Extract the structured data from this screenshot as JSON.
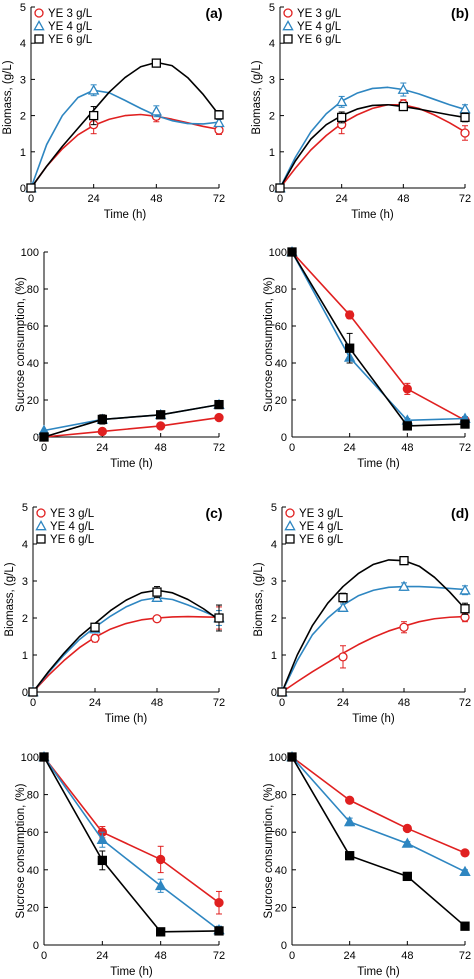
{
  "chart_data": [
    {
      "id": "biomass-a",
      "type": "line",
      "panel_label": "(a)",
      "xlabel": "Time (h)",
      "ylabel": "Biomass, (g/L)",
      "xlim": [
        0,
        72
      ],
      "ylim": [
        0,
        5
      ],
      "xticks": [
        0,
        24,
        48,
        72
      ],
      "yticks": [
        0,
        1,
        2,
        3,
        4,
        5
      ],
      "legend": "top-left",
      "grid": false,
      "series": [
        {
          "name": "YE 3 g/L",
          "color": "#e02020",
          "marker": "circle-open",
          "x": [
            0,
            24,
            48,
            72
          ],
          "y": [
            0,
            1.75,
            1.98,
            1.6
          ],
          "err": [
            0,
            0.25,
            0.15,
            0.12
          ],
          "curve_x": [
            0,
            6,
            12,
            18,
            24,
            30,
            36,
            42,
            48,
            54,
            60,
            66,
            72
          ],
          "curve_y": [
            0,
            0.6,
            1.08,
            1.47,
            1.73,
            1.9,
            2.0,
            2.03,
            1.98,
            1.9,
            1.8,
            1.7,
            1.62
          ]
        },
        {
          "name": "YE 4 g/L",
          "color": "#2e86c1",
          "marker": "triangle-open",
          "x": [
            0,
            24,
            48,
            72
          ],
          "y": [
            0,
            2.7,
            2.12,
            1.8
          ],
          "err": [
            0,
            0.15,
            0.15,
            0.1
          ],
          "curve_x": [
            0,
            6,
            12,
            18,
            24,
            30,
            36,
            42,
            48,
            54,
            60,
            66,
            72
          ],
          "curve_y": [
            0,
            1.2,
            2.0,
            2.5,
            2.7,
            2.63,
            2.42,
            2.2,
            2.0,
            1.86,
            1.78,
            1.77,
            1.82
          ]
        },
        {
          "name": "YE 6 g/L",
          "color": "#000000",
          "marker": "square-open",
          "x": [
            0,
            24,
            48,
            72
          ],
          "y": [
            0,
            2.0,
            3.45,
            2.02
          ],
          "err": [
            0,
            0.25,
            0.08,
            0.12
          ],
          "curve_x": [
            0,
            6,
            12,
            18,
            24,
            30,
            36,
            42,
            48,
            54,
            60,
            66,
            72
          ],
          "curve_y": [
            0,
            0.6,
            1.15,
            1.65,
            2.15,
            2.65,
            3.05,
            3.35,
            3.47,
            3.38,
            3.05,
            2.58,
            2.02
          ]
        }
      ]
    },
    {
      "id": "biomass-b",
      "type": "line",
      "panel_label": "(b)",
      "xlabel": "Time (h)",
      "ylabel": "Biomass, (g/L)",
      "xlim": [
        0,
        72
      ],
      "ylim": [
        0,
        5
      ],
      "xticks": [
        0,
        24,
        48,
        72
      ],
      "yticks": [
        0,
        1,
        2,
        3,
        4,
        5
      ],
      "legend": "top-left",
      "grid": false,
      "series": [
        {
          "name": "YE 3 g/L",
          "color": "#e02020",
          "marker": "circle-open",
          "x": [
            0,
            24,
            48,
            72
          ],
          "y": [
            0,
            1.75,
            2.32,
            1.52
          ],
          "err": [
            0,
            0.25,
            0.12,
            0.2
          ],
          "curve_x": [
            0,
            6,
            12,
            18,
            24,
            30,
            36,
            42,
            48,
            54,
            60,
            66,
            72
          ],
          "curve_y": [
            0,
            0.55,
            1.05,
            1.45,
            1.78,
            2.02,
            2.2,
            2.3,
            2.3,
            2.2,
            2.02,
            1.8,
            1.55
          ]
        },
        {
          "name": "YE 4 g/L",
          "color": "#2e86c1",
          "marker": "triangle-open",
          "x": [
            0,
            24,
            48,
            72
          ],
          "y": [
            0,
            2.38,
            2.72,
            2.18
          ],
          "err": [
            0,
            0.15,
            0.18,
            0.12
          ],
          "curve_x": [
            0,
            6,
            12,
            18,
            24,
            30,
            36,
            42,
            48,
            54,
            60,
            66,
            72
          ],
          "curve_y": [
            0,
            0.85,
            1.55,
            2.05,
            2.4,
            2.62,
            2.75,
            2.78,
            2.72,
            2.6,
            2.45,
            2.3,
            2.17
          ]
        },
        {
          "name": "YE 6 g/L",
          "color": "#000000",
          "marker": "square-open",
          "x": [
            0,
            24,
            48,
            72
          ],
          "y": [
            0,
            1.95,
            2.25,
            1.95
          ],
          "err": [
            0,
            0.15,
            0.1,
            0.12
          ],
          "curve_x": [
            0,
            6,
            12,
            18,
            24,
            30,
            36,
            42,
            48,
            54,
            60,
            66,
            72
          ],
          "curve_y": [
            0,
            0.75,
            1.35,
            1.75,
            2.0,
            2.18,
            2.28,
            2.3,
            2.25,
            2.18,
            2.1,
            2.02,
            1.95
          ]
        }
      ]
    },
    {
      "id": "sucrose-a",
      "type": "line",
      "xlabel": "Time (h)",
      "ylabel": "Sucrose consumption, (%)",
      "xlim": [
        0,
        72
      ],
      "ylim": [
        0,
        100
      ],
      "xticks": [
        0,
        24,
        48,
        72
      ],
      "yticks": [
        0,
        20,
        40,
        60,
        80,
        100
      ],
      "grid": false,
      "series": [
        {
          "color": "#e02020",
          "marker": "circle-filled",
          "x": [
            0,
            24,
            48,
            72
          ],
          "y": [
            0,
            3,
            6,
            10.5
          ],
          "err": [
            0,
            0,
            0,
            0
          ]
        },
        {
          "color": "#2e86c1",
          "marker": "triangle-filled",
          "x": [
            0,
            24,
            48,
            72
          ],
          "y": [
            3.5,
            9.5,
            12,
            17.5
          ],
          "err": [
            0,
            0,
            0,
            0
          ]
        },
        {
          "color": "#000000",
          "marker": "square-filled",
          "x": [
            0,
            24,
            48,
            72
          ],
          "y": [
            0,
            9.5,
            12,
            17.5
          ],
          "err": [
            0,
            2.5,
            0,
            0
          ]
        }
      ]
    },
    {
      "id": "sucrose-b",
      "type": "line",
      "xlabel": "Time (h)",
      "ylabel": "Sucrose consumption, (%)",
      "xlim": [
        0,
        72
      ],
      "ylim": [
        0,
        100
      ],
      "xticks": [
        0,
        24,
        48,
        72
      ],
      "yticks": [
        0,
        20,
        40,
        60,
        80,
        100
      ],
      "grid": false,
      "series": [
        {
          "color": "#e02020",
          "marker": "circle-filled",
          "x": [
            0,
            24,
            48,
            72
          ],
          "y": [
            100,
            66,
            26,
            9
          ],
          "err": [
            0,
            2,
            3,
            2
          ]
        },
        {
          "color": "#2e86c1",
          "marker": "triangle-filled",
          "x": [
            0,
            24,
            48,
            72
          ],
          "y": [
            100,
            43,
            9,
            10
          ],
          "err": [
            0,
            3,
            1,
            1
          ]
        },
        {
          "color": "#000000",
          "marker": "square-filled",
          "x": [
            0,
            24,
            48,
            72
          ],
          "y": [
            100,
            48,
            6,
            7
          ],
          "err": [
            0,
            8,
            1,
            1
          ]
        }
      ]
    },
    {
      "id": "biomass-c",
      "type": "line",
      "panel_label": "(c)",
      "xlabel": "Time (h)",
      "ylabel": "Biomass, (g/L)",
      "xlim": [
        0,
        72
      ],
      "ylim": [
        0,
        5
      ],
      "xticks": [
        0,
        24,
        48,
        72
      ],
      "yticks": [
        0,
        1,
        2,
        3,
        4,
        5
      ],
      "legend": "top-left",
      "grid": false,
      "series": [
        {
          "name": "YE 3 g/L",
          "color": "#e02020",
          "marker": "circle-open",
          "x": [
            0,
            24,
            48,
            72
          ],
          "y": [
            0,
            1.45,
            1.98,
            2.0
          ],
          "err": [
            0,
            0.1,
            0.06,
            0.3
          ],
          "curve_x": [
            0,
            6,
            12,
            18,
            24,
            30,
            36,
            42,
            48,
            54,
            60,
            66,
            72
          ],
          "curve_y": [
            0,
            0.45,
            0.85,
            1.2,
            1.48,
            1.7,
            1.85,
            1.95,
            2.0,
            2.03,
            2.04,
            2.03,
            2.02
          ]
        },
        {
          "name": "YE 4 g/L",
          "color": "#2e86c1",
          "marker": "triangle-open",
          "x": [
            0,
            24,
            48,
            72
          ],
          "y": [
            0,
            1.7,
            2.55,
            2.0
          ],
          "err": [
            0,
            0.1,
            0.1,
            0.2
          ],
          "curve_x": [
            0,
            6,
            12,
            18,
            24,
            30,
            36,
            42,
            48,
            54,
            60,
            66,
            72
          ],
          "curve_y": [
            0,
            0.52,
            1.0,
            1.42,
            1.75,
            2.05,
            2.3,
            2.48,
            2.55,
            2.5,
            2.35,
            2.18,
            2.0
          ]
        },
        {
          "name": "YE 6 g/L",
          "color": "#000000",
          "marker": "square-open",
          "x": [
            0,
            24,
            48,
            72
          ],
          "y": [
            0,
            1.75,
            2.7,
            2.0
          ],
          "err": [
            0,
            0.1,
            0.15,
            0.35
          ],
          "curve_x": [
            0,
            6,
            12,
            18,
            24,
            30,
            36,
            42,
            48,
            54,
            60,
            66,
            72
          ],
          "curve_y": [
            0,
            0.55,
            1.05,
            1.5,
            1.85,
            2.2,
            2.48,
            2.68,
            2.75,
            2.68,
            2.5,
            2.25,
            1.95
          ]
        }
      ]
    },
    {
      "id": "biomass-d",
      "type": "line",
      "panel_label": "(d)",
      "xlabel": "Time (h)",
      "ylabel": "Biomass, (g/L)",
      "xlim": [
        0,
        72
      ],
      "ylim": [
        0,
        5
      ],
      "xticks": [
        0,
        24,
        48,
        72
      ],
      "yticks": [
        0,
        1,
        2,
        3,
        4,
        5
      ],
      "legend": "top-left",
      "grid": false,
      "series": [
        {
          "name": "YE 3 g/L",
          "color": "#e02020",
          "marker": "circle-open",
          "x": [
            0,
            24,
            48,
            72
          ],
          "y": [
            0,
            0.95,
            1.75,
            2.02
          ],
          "err": [
            0,
            0.3,
            0.15,
            0.12
          ],
          "curve_x": [
            0,
            6,
            12,
            18,
            24,
            30,
            36,
            42,
            48,
            54,
            60,
            66,
            72
          ],
          "curve_y": [
            0,
            0.28,
            0.55,
            0.8,
            1.05,
            1.28,
            1.48,
            1.65,
            1.78,
            1.9,
            1.98,
            2.02,
            2.04
          ]
        },
        {
          "name": "YE 4 g/L",
          "color": "#2e86c1",
          "marker": "triangle-open",
          "x": [
            0,
            24,
            48,
            72
          ],
          "y": [
            0,
            2.28,
            2.85,
            2.75
          ],
          "err": [
            0,
            0.1,
            0.1,
            0.12
          ],
          "curve_x": [
            0,
            6,
            12,
            18,
            24,
            30,
            36,
            42,
            48,
            54,
            60,
            66,
            72
          ],
          "curve_y": [
            0,
            0.85,
            1.55,
            2.0,
            2.35,
            2.6,
            2.75,
            2.83,
            2.85,
            2.85,
            2.83,
            2.8,
            2.77
          ]
        },
        {
          "name": "YE 6 g/L",
          "color": "#000000",
          "marker": "square-open",
          "x": [
            0,
            24,
            48,
            72
          ],
          "y": [
            0,
            2.55,
            3.55,
            2.25
          ],
          "err": [
            0,
            0.12,
            0.08,
            0.15
          ],
          "curve_x": [
            0,
            6,
            12,
            18,
            24,
            30,
            36,
            42,
            48,
            54,
            60,
            66,
            72
          ],
          "curve_y": [
            0,
            1.0,
            1.8,
            2.4,
            2.85,
            3.2,
            3.45,
            3.57,
            3.55,
            3.4,
            3.1,
            2.7,
            2.25
          ]
        }
      ]
    },
    {
      "id": "sucrose-c",
      "type": "line",
      "xlabel": "Time (h)",
      "ylabel": "Sucrose consumption, (%)",
      "xlim": [
        0,
        72
      ],
      "ylim": [
        0,
        100
      ],
      "xticks": [
        0,
        24,
        48,
        72
      ],
      "yticks": [
        0,
        20,
        40,
        60,
        80,
        100
      ],
      "grid": false,
      "series": [
        {
          "color": "#e02020",
          "marker": "circle-filled",
          "x": [
            0,
            24,
            48,
            72
          ],
          "y": [
            100,
            60,
            45.5,
            22.5
          ],
          "err": [
            0,
            3,
            7,
            6
          ]
        },
        {
          "color": "#2e86c1",
          "marker": "triangle-filled",
          "x": [
            0,
            24,
            48,
            72
          ],
          "y": [
            100,
            56,
            31.5,
            8
          ],
          "err": [
            0,
            4,
            3.5,
            2
          ]
        },
        {
          "color": "#000000",
          "marker": "square-filled",
          "x": [
            0,
            24,
            48,
            72
          ],
          "y": [
            100,
            45,
            7,
            7.5
          ],
          "err": [
            0,
            5,
            1,
            1
          ]
        }
      ]
    },
    {
      "id": "sucrose-d",
      "type": "line",
      "xlabel": "Time (h)",
      "ylabel": "Sucrose consumption, (%)",
      "xlim": [
        0,
        72
      ],
      "ylim": [
        0,
        100
      ],
      "xticks": [
        0,
        24,
        48,
        72
      ],
      "yticks": [
        0,
        20,
        40,
        60,
        80,
        100
      ],
      "grid": false,
      "series": [
        {
          "color": "#e02020",
          "marker": "circle-filled",
          "x": [
            0,
            24,
            48,
            72
          ],
          "y": [
            100,
            77,
            62,
            49
          ],
          "err": [
            0,
            1,
            1,
            1
          ]
        },
        {
          "color": "#2e86c1",
          "marker": "triangle-filled",
          "x": [
            0,
            24,
            48,
            72
          ],
          "y": [
            100,
            65.5,
            54,
            39
          ],
          "err": [
            0,
            2,
            1,
            1
          ]
        },
        {
          "color": "#000000",
          "marker": "square-filled",
          "x": [
            0,
            24,
            48,
            72
          ],
          "y": [
            100,
            47.5,
            36.5,
            10
          ],
          "err": [
            0,
            1,
            1,
            1
          ]
        }
      ]
    }
  ]
}
